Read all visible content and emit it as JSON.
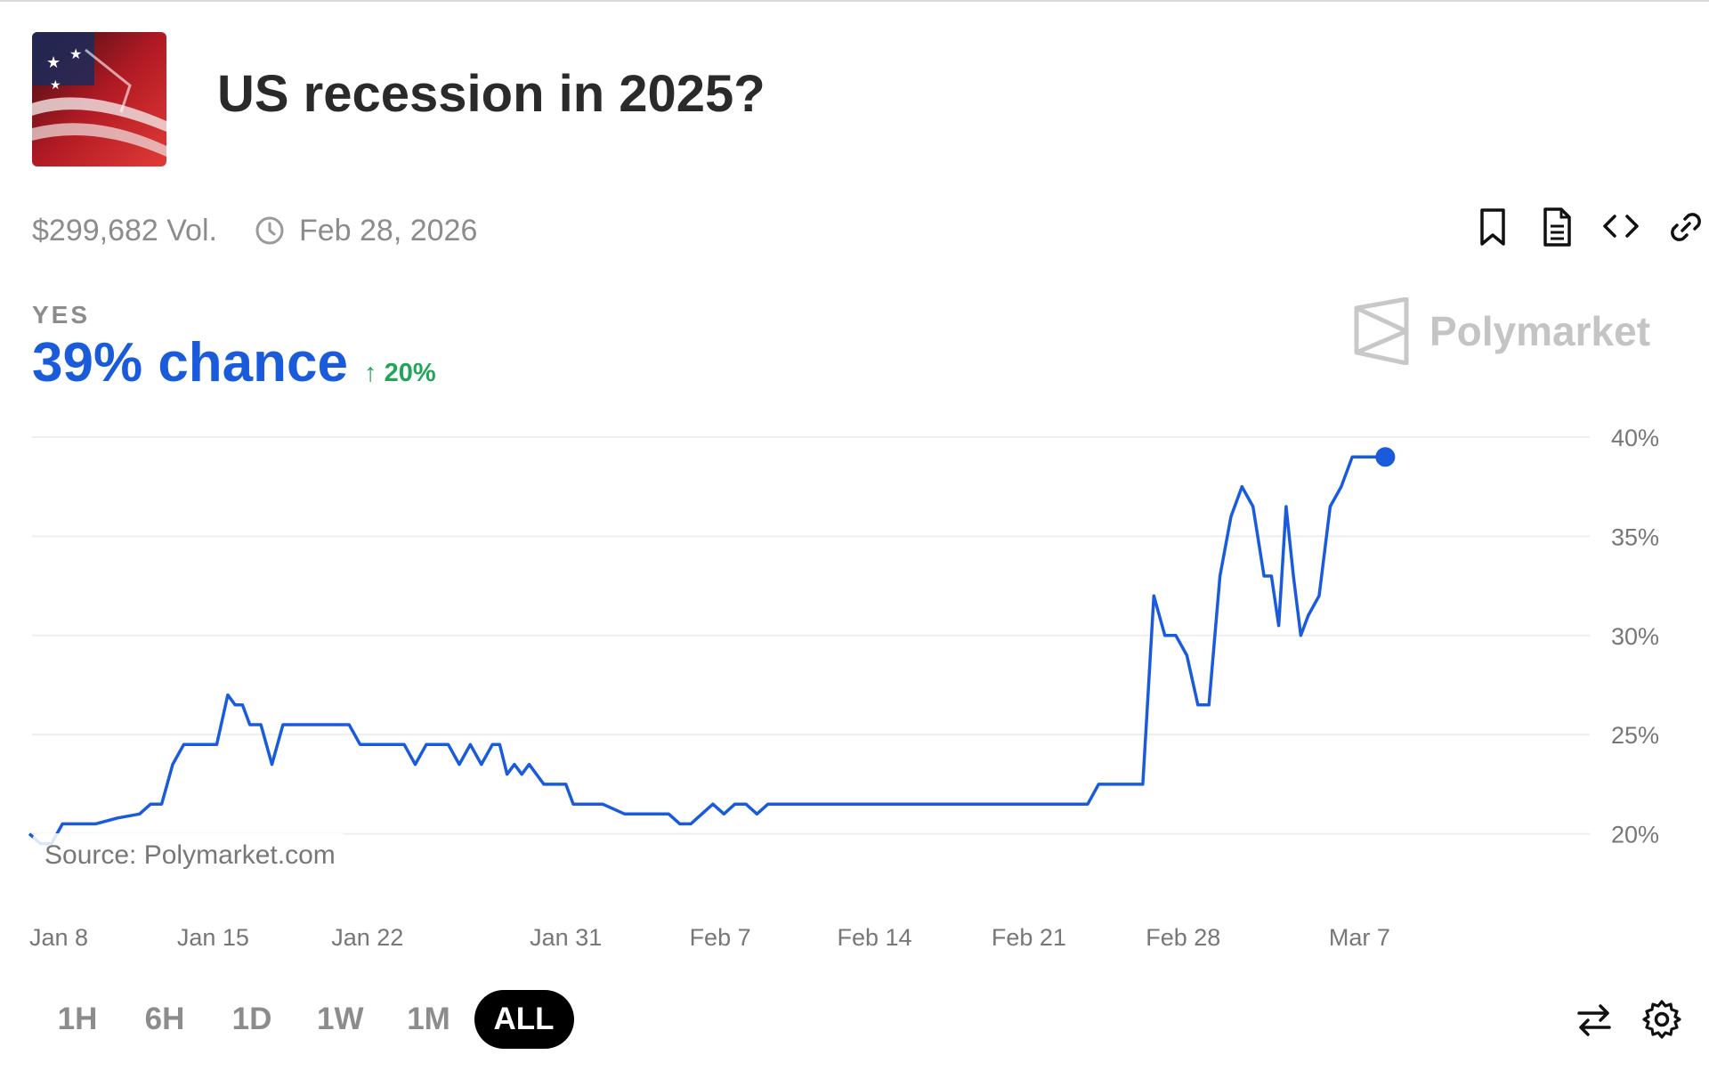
{
  "market": {
    "title": "US recession in 2025?",
    "volume": "$299,682 Vol.",
    "end_date": "Feb 28, 2026",
    "outcome_label": "YES",
    "chance_text": "39% chance",
    "change_text": "20%",
    "change_direction": "up"
  },
  "brand": {
    "name": "Polymarket",
    "source": "Source: Polymarket.com"
  },
  "actions": [
    {
      "icon": "bookmark-icon"
    },
    {
      "icon": "document-icon"
    },
    {
      "icon": "embed-code-icon"
    },
    {
      "icon": "link-icon"
    }
  ],
  "time_ranges": [
    {
      "label": "1H",
      "active": false
    },
    {
      "label": "6H",
      "active": false
    },
    {
      "label": "1D",
      "active": false
    },
    {
      "label": "1W",
      "active": false
    },
    {
      "label": "1M",
      "active": false
    },
    {
      "label": "ALL",
      "active": true
    }
  ],
  "tools": [
    {
      "icon": "swap-icon"
    },
    {
      "icon": "settings-gear-icon"
    }
  ],
  "colors": {
    "line": "#1a5bdc",
    "positive": "#22a55a",
    "grid": "#eeeeee",
    "axis_text": "#777777"
  },
  "chart_data": {
    "type": "line",
    "x_unit": "date",
    "xticks": [
      "Jan 8",
      "Jan 15",
      "Jan 22",
      "Jan 31",
      "Feb 7",
      "Feb 14",
      "Feb 21",
      "Feb 28",
      "Mar 7"
    ],
    "yticks": [
      "20%",
      "25%",
      "30%",
      "35%",
      "40%"
    ],
    "ylim": [
      18.5,
      40
    ],
    "grid": true,
    "series": [
      {
        "x": [
          "Jan 8",
          "Jan 8",
          "Jan 9",
          "Jan 9",
          "Jan 10",
          "Jan 11",
          "Jan 12",
          "Jan 13",
          "Jan 13",
          "Jan 14",
          "Jan 14",
          "Jan 15",
          "Jan 15",
          "Jan 16",
          "Jan 16",
          "Jan 17",
          "Jan 17",
          "Jan 17",
          "Jan 18",
          "Jan 18",
          "Jan 19",
          "Jan 19",
          "Jan 20",
          "Jan 20",
          "Jan 21",
          "Jan 22",
          "Jan 22",
          "Jan 23",
          "Jan 24",
          "Jan 25",
          "Jan 25",
          "Jan 26",
          "Jan 26",
          "Jan 27",
          "Jan 27",
          "Jan 28",
          "Jan 28",
          "Jan 29",
          "Jan 29",
          "Jan 29",
          "Jan 30",
          "Jan 30",
          "Jan 30",
          "Jan 31",
          "Jan 31",
          "Jan 31",
          "Feb 1",
          "Feb 1",
          "Feb 1",
          "Feb 2",
          "Feb 2",
          "Feb 3",
          "Feb 4",
          "Feb 5",
          "Feb 6",
          "Feb 6",
          "Feb 7",
          "Feb 8",
          "Feb 8",
          "Feb 9",
          "Feb 9",
          "Feb 10",
          "Feb 10",
          "Feb 11",
          "Feb 11",
          "Feb 12",
          "Feb 12",
          "Feb 12",
          "Feb 13",
          "Feb 13",
          "Feb 14",
          "Feb 15",
          "Feb 16",
          "Feb 17",
          "Feb 18",
          "Feb 19",
          "Feb 20",
          "Feb 21",
          "Feb 22",
          "Feb 23",
          "Feb 24",
          "Feb 25",
          "Feb 25",
          "Feb 26",
          "Feb 27",
          "Feb 27",
          "Feb 28",
          "Feb 28",
          "Feb 29",
          "Feb 29",
          "Mar 1",
          "Mar 1",
          "Mar 2",
          "Mar 2",
          "Mar 3",
          "Mar 3",
          "Mar 4",
          "Mar 4",
          "Mar 4",
          "Mar 5",
          "Mar 5",
          "Mar 5",
          "Mar 6",
          "Mar 6",
          "Mar 7",
          "Mar 7",
          "Mar 8",
          "Mar 8",
          "Mar 9",
          "Mar 9"
        ],
        "values": [
          20.0,
          19.5,
          19.5,
          20.5,
          20.5,
          20.5,
          20.8,
          21.0,
          21.5,
          21.5,
          23.5,
          24.5,
          24.5,
          24.5,
          24.5,
          27.0,
          26.5,
          26.5,
          25.5,
          25.5,
          23.5,
          25.5,
          25.5,
          25.5,
          25.5,
          25.5,
          25.5,
          24.5,
          24.5,
          24.5,
          23.5,
          24.5,
          24.5,
          24.5,
          23.5,
          24.5,
          23.5,
          24.5,
          24.5,
          23.0,
          23.5,
          23.0,
          23.5,
          23.0,
          22.5,
          22.5,
          22.5,
          22.5,
          21.5,
          21.5,
          21.5,
          21.5,
          21.0,
          21.0,
          21.0,
          20.5,
          20.5,
          21.5,
          21.0,
          21.5,
          21.5,
          21.0,
          21.5,
          21.5,
          21.5,
          21.5,
          21.5,
          21.5,
          21.5,
          21.5,
          21.5,
          21.5,
          21.5,
          21.5,
          21.5,
          21.5,
          21.5,
          21.5,
          21.5,
          21.5,
          21.5,
          21.5,
          22.5,
          22.5,
          22.5,
          22.5,
          32.0,
          30.0,
          30.0,
          29.0,
          26.5,
          26.5,
          33.0,
          36.0,
          37.5,
          36.5,
          33.0,
          33.0,
          30.5,
          36.5,
          33.0,
          30.0,
          31.0,
          32.0,
          36.5,
          37.5,
          39.0,
          39.0,
          39.0,
          39.0
        ]
      }
    ]
  }
}
